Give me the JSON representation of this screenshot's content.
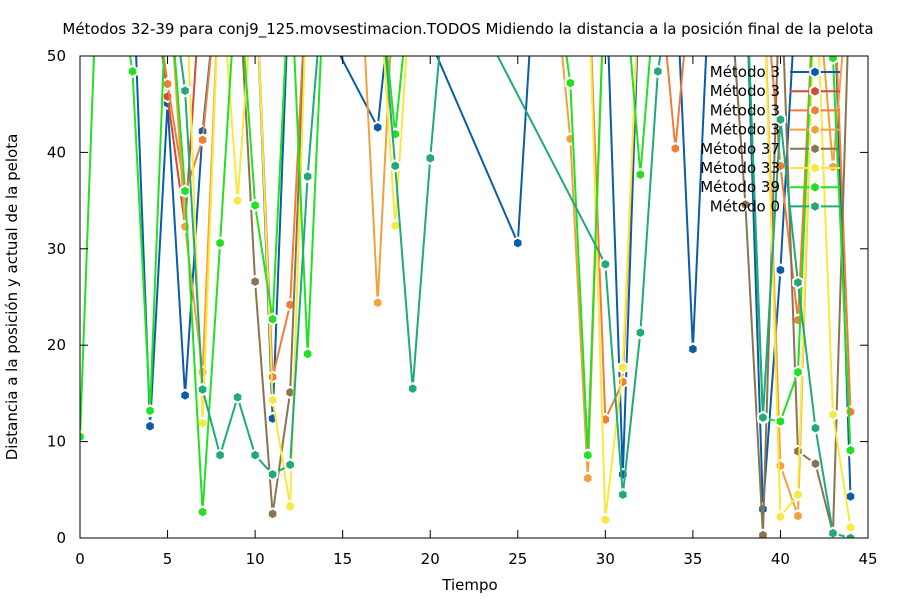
{
  "chart_data": {
    "type": "line",
    "title": "Métodos 32-39 para conj9_125.movsestimacion.TODOS Midiendo la distancia a la posición final de la pelota",
    "xlabel": "Tiempo",
    "ylabel": "Distancia a la posición y actual de la pelota",
    "xlim": [
      0,
      45
    ],
    "ylim": [
      0,
      50
    ],
    "xticks": [
      0,
      5,
      10,
      15,
      20,
      25,
      30,
      35,
      40,
      45
    ],
    "yticks": [
      0,
      10,
      20,
      30,
      40,
      50
    ],
    "grid": false,
    "legend_position": "top-right",
    "series": [
      {
        "name": "Método 3",
        "color": "#0a5ca8",
        "points": [
          [
            3,
            60
          ],
          [
            4,
            11.6
          ],
          [
            5,
            45.1
          ],
          [
            6,
            14.8
          ],
          [
            7,
            42.2
          ],
          [
            8,
            60
          ],
          [
            10,
            60
          ],
          [
            11,
            12.4
          ],
          [
            12,
            60
          ],
          [
            17,
            42.6
          ],
          [
            18,
            60
          ],
          [
            25,
            30.6
          ],
          [
            26,
            60
          ],
          [
            30,
            60
          ],
          [
            31,
            6.6
          ],
          [
            32,
            60
          ],
          [
            34,
            60
          ],
          [
            35,
            19.6
          ],
          [
            36,
            60
          ],
          [
            38,
            60
          ],
          [
            39,
            3.0
          ],
          [
            40,
            27.8
          ],
          [
            41,
            60
          ],
          [
            43,
            60
          ],
          [
            44,
            4.3
          ]
        ]
      },
      {
        "name": "Método 3",
        "color": "#d44a36",
        "points": [
          [
            4,
            60
          ],
          [
            5,
            45.8
          ],
          [
            6,
            32.4
          ],
          [
            7,
            60
          ]
        ]
      },
      {
        "name": "Método 3",
        "color": "#f07c3a",
        "points": [
          [
            4,
            60
          ],
          [
            5,
            47.1
          ],
          [
            6,
            35.9
          ],
          [
            7,
            41.3
          ],
          [
            8,
            60
          ],
          [
            10,
            60
          ],
          [
            11,
            16.7
          ],
          [
            12,
            24.2
          ],
          [
            13,
            60
          ],
          [
            29,
            60
          ],
          [
            30,
            12.3
          ],
          [
            31,
            16.2
          ],
          [
            32,
            60
          ],
          [
            33,
            60
          ],
          [
            34,
            40.4
          ],
          [
            35,
            60
          ],
          [
            39,
            60
          ],
          [
            40,
            38.6
          ],
          [
            41,
            22.6
          ],
          [
            42,
            60
          ],
          [
            43,
            60
          ],
          [
            44,
            13.1
          ]
        ]
      },
      {
        "name": "Método 3",
        "color": "#f3a13c",
        "points": [
          [
            5,
            60
          ],
          [
            6,
            32.3
          ],
          [
            7,
            17.2
          ],
          [
            8,
            60
          ],
          [
            16,
            60
          ],
          [
            17,
            24.4
          ],
          [
            18,
            60
          ],
          [
            27,
            60
          ],
          [
            28,
            41.4
          ],
          [
            29,
            6.2
          ],
          [
            30,
            60
          ],
          [
            39,
            60
          ],
          [
            40,
            7.5
          ],
          [
            41,
            2.3
          ],
          [
            42,
            60
          ],
          [
            43,
            38.5
          ],
          [
            44,
            60
          ]
        ]
      },
      {
        "name": "Método 37",
        "color": "#8a7350",
        "points": [
          [
            9,
            60
          ],
          [
            10,
            26.6
          ],
          [
            11,
            2.5
          ],
          [
            12,
            15.1
          ],
          [
            13,
            60
          ],
          [
            37,
            60
          ],
          [
            38,
            34.6
          ],
          [
            39,
            0.3
          ],
          [
            40,
            60
          ],
          [
            41,
            9.0
          ],
          [
            42,
            7.7
          ],
          [
            43,
            0.5
          ],
          [
            44,
            60
          ]
        ]
      },
      {
        "name": "Método 33",
        "color": "#f8e840",
        "points": [
          [
            6,
            60
          ],
          [
            7,
            11.9
          ],
          [
            8,
            60
          ],
          [
            9,
            35.0
          ],
          [
            10,
            60
          ],
          [
            11,
            14.3
          ],
          [
            12,
            3.3
          ],
          [
            13,
            60
          ],
          [
            17,
            60
          ],
          [
            18,
            32.4
          ],
          [
            19,
            60
          ],
          [
            29,
            60
          ],
          [
            30,
            1.9
          ],
          [
            31,
            17.7
          ],
          [
            32,
            60
          ],
          [
            39,
            60
          ],
          [
            40,
            2.2
          ],
          [
            41,
            4.5
          ],
          [
            42,
            60
          ],
          [
            43,
            12.8
          ],
          [
            44,
            1.1
          ]
        ]
      },
      {
        "name": "Método 39",
        "color": "#22e022",
        "points": [
          [
            0,
            10.5
          ],
          [
            1,
            60
          ],
          [
            2,
            60
          ],
          [
            3,
            48.4
          ],
          [
            4,
            13.2
          ],
          [
            5,
            60
          ],
          [
            6,
            36.0
          ],
          [
            7,
            2.7
          ],
          [
            8,
            30.6
          ],
          [
            9,
            60
          ],
          [
            10,
            34.5
          ],
          [
            11,
            22.7
          ],
          [
            12,
            60
          ],
          [
            13,
            19.1
          ],
          [
            14,
            60
          ],
          [
            17,
            60
          ],
          [
            18,
            41.9
          ],
          [
            19,
            60
          ],
          [
            27,
            60
          ],
          [
            28,
            47.2
          ],
          [
            29,
            8.6
          ],
          [
            30,
            60
          ],
          [
            31,
            60
          ],
          [
            32,
            37.7
          ],
          [
            33,
            60
          ],
          [
            38,
            60
          ],
          [
            39,
            12.4
          ],
          [
            40,
            12.1
          ],
          [
            41,
            17.2
          ],
          [
            42,
            60
          ],
          [
            43,
            49.8
          ],
          [
            44,
            9.1
          ]
        ]
      },
      {
        "name": "Método 0",
        "color": "#1faa78",
        "points": [
          [
            5,
            60
          ],
          [
            6,
            46.4
          ],
          [
            7,
            15.4
          ],
          [
            8,
            8.6
          ],
          [
            9,
            14.6
          ],
          [
            10,
            8.6
          ],
          [
            11,
            6.6
          ],
          [
            12,
            7.6
          ],
          [
            13,
            37.5
          ],
          [
            14,
            60
          ],
          [
            17,
            60
          ],
          [
            18,
            38.6
          ],
          [
            19,
            15.5
          ],
          [
            20,
            39.4
          ],
          [
            21,
            60
          ],
          [
            30,
            28.4
          ],
          [
            31,
            4.5
          ],
          [
            32,
            21.3
          ],
          [
            33,
            48.4
          ],
          [
            34,
            60
          ],
          [
            38,
            60
          ],
          [
            39,
            12.5
          ],
          [
            40,
            43.4
          ],
          [
            41,
            26.5
          ],
          [
            42,
            11.4
          ],
          [
            43,
            0.5
          ],
          [
            44,
            0.0
          ]
        ]
      }
    ]
  }
}
